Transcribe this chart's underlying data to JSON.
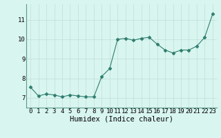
{
  "x": [
    0,
    1,
    2,
    3,
    4,
    5,
    6,
    7,
    8,
    9,
    10,
    11,
    12,
    13,
    14,
    15,
    16,
    17,
    18,
    19,
    20,
    21,
    22,
    23
  ],
  "y": [
    7.55,
    7.1,
    7.2,
    7.15,
    7.05,
    7.15,
    7.1,
    7.05,
    7.05,
    8.1,
    8.5,
    10.0,
    10.05,
    9.95,
    10.05,
    10.1,
    9.75,
    9.45,
    9.3,
    9.45,
    9.45,
    9.65,
    10.1,
    11.3
  ],
  "line_color": "#2e7d6e",
  "marker": "D",
  "marker_size": 2.5,
  "bg_color": "#d8f5ef",
  "grid_color": "#c0ddd6",
  "xlabel": "Humidex (Indice chaleur)",
  "xlabel_fontsize": 7.5,
  "tick_fontsize": 6.5,
  "ylim": [
    6.5,
    11.8
  ],
  "xlim": [
    -0.5,
    23.5
  ],
  "yticks": [
    7,
    8,
    9,
    10,
    11
  ],
  "xticks": [
    0,
    1,
    2,
    3,
    4,
    5,
    6,
    7,
    8,
    9,
    10,
    11,
    12,
    13,
    14,
    15,
    16,
    17,
    18,
    19,
    20,
    21,
    22,
    23
  ]
}
